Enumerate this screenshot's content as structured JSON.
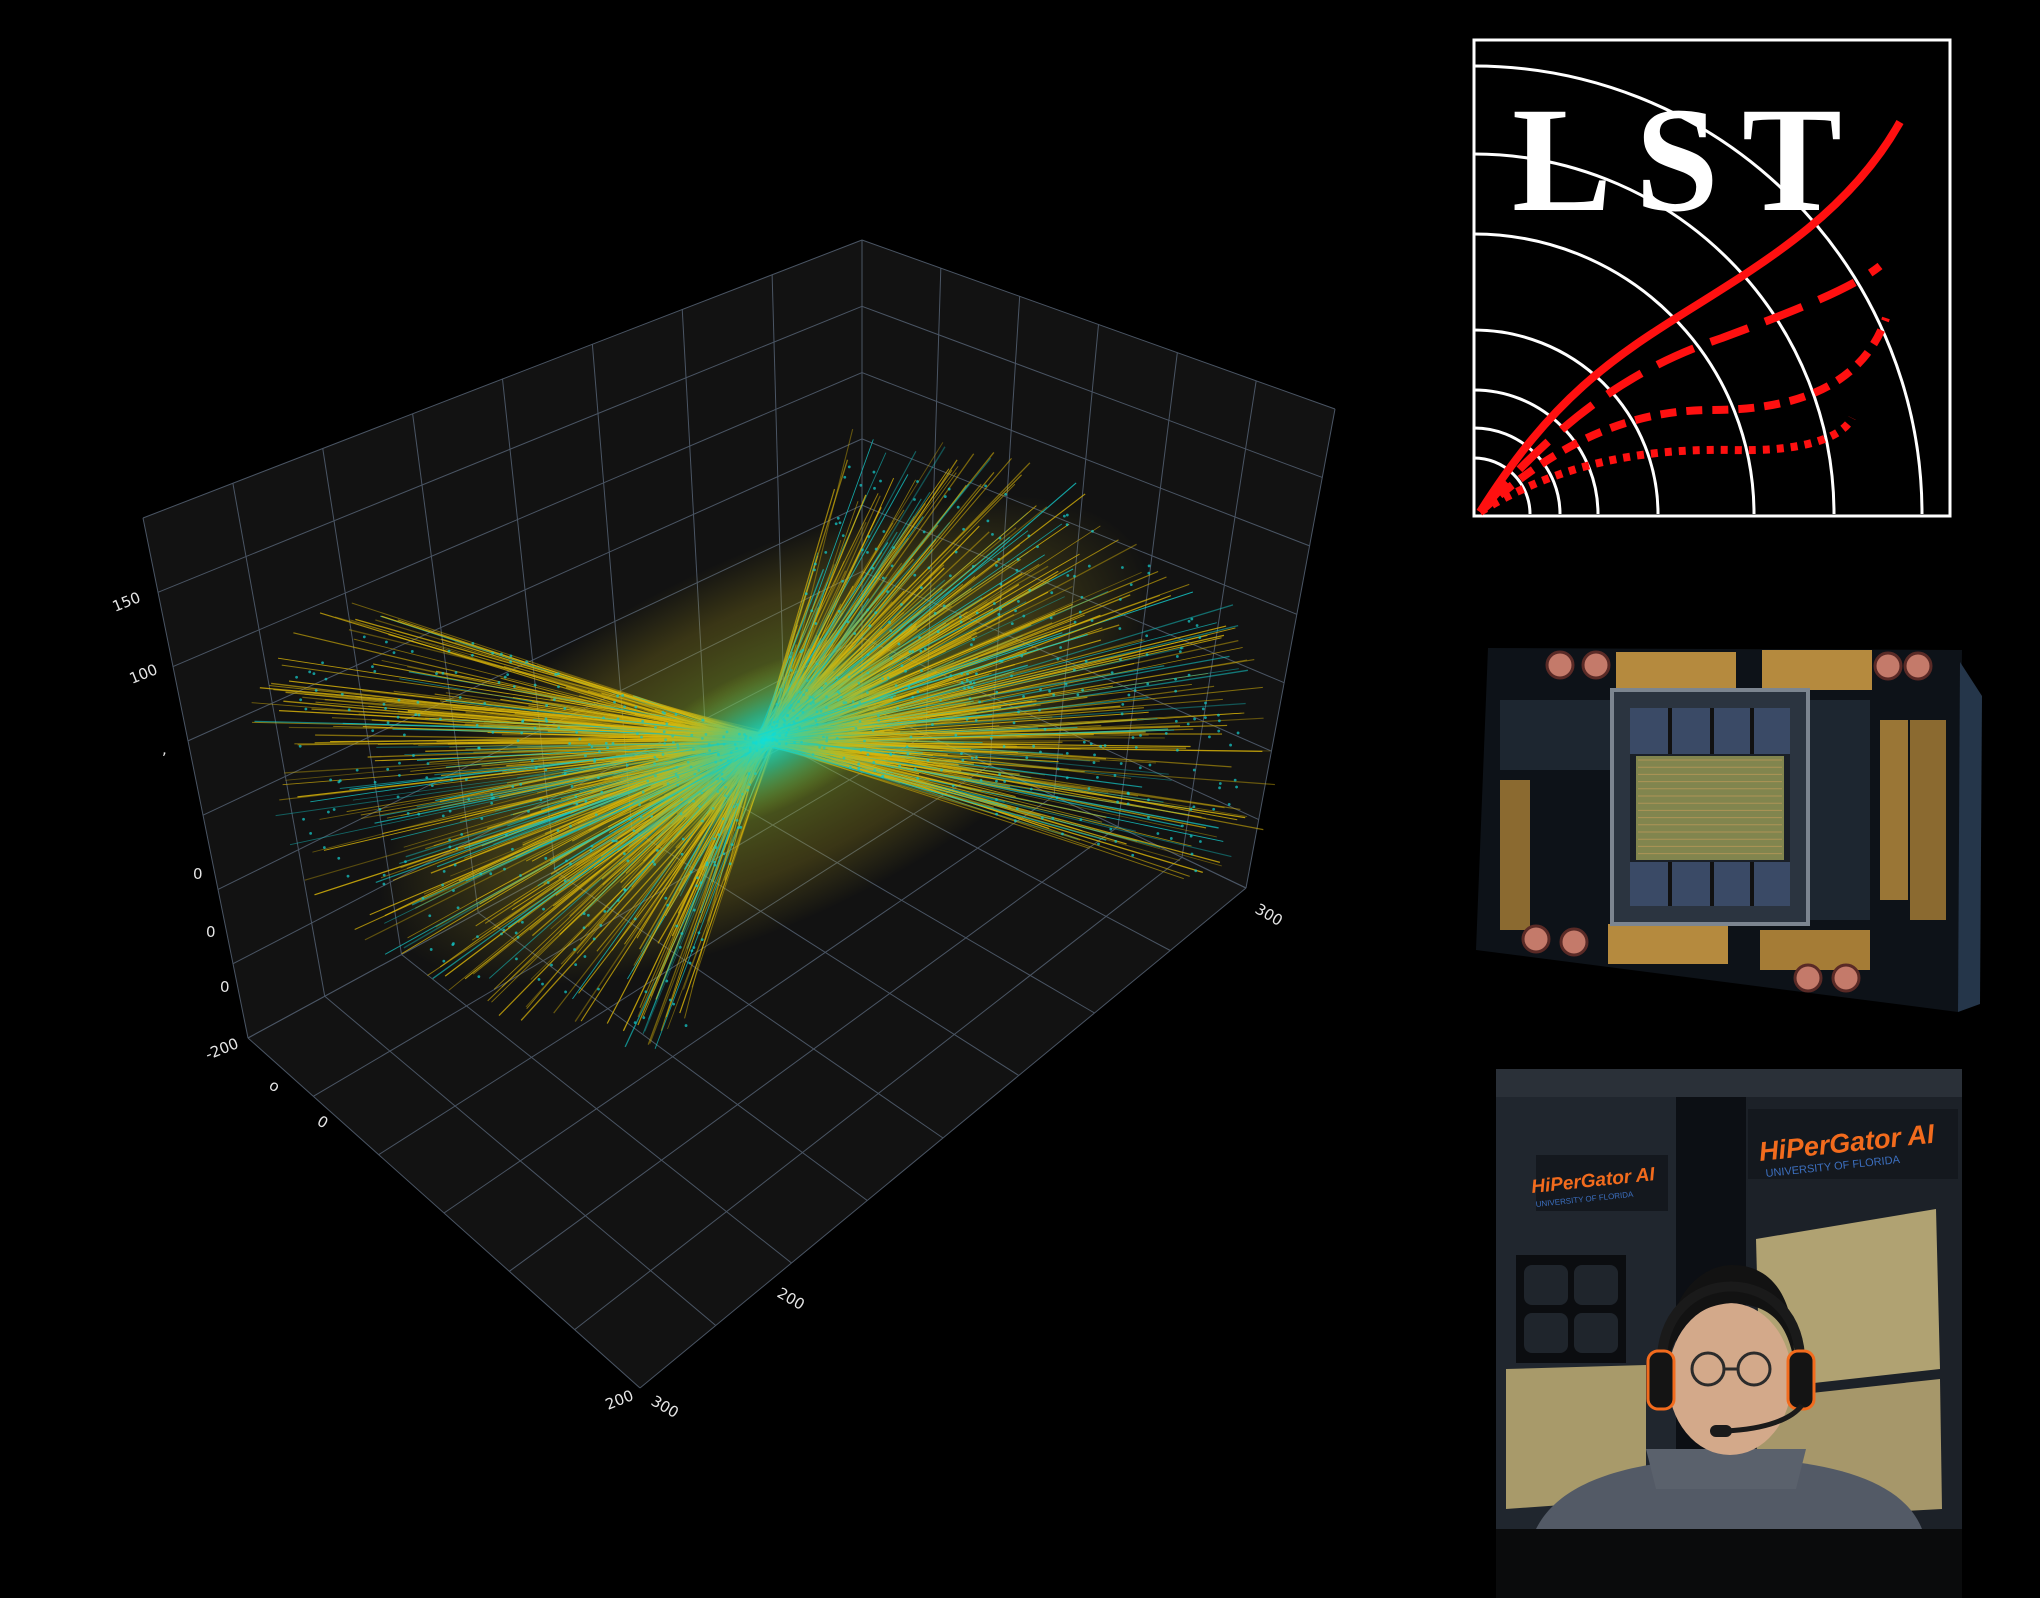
{
  "plot3d": {
    "type": "scatter3d",
    "tick_labels": {
      "vertical_axis": [
        "150",
        "100",
        "0",
        "-200"
      ],
      "right_axis": [
        "300"
      ],
      "front_axis": [
        "0",
        "200",
        "200",
        "300"
      ]
    },
    "series": [
      {
        "marker": "line",
        "color": "#d9b40a"
      },
      {
        "marker": "point",
        "color": "#14c6c6"
      }
    ],
    "background": "#111111",
    "grid": true
  },
  "logo": {
    "text": "LST",
    "border_color": "#ffffff",
    "track_color": "#ff1010"
  },
  "gpu_image": {
    "icon": "gpu-card-icon"
  },
  "photo": {
    "sign_left": {
      "title": "HiPerGator AI",
      "subtitle": "UNIVERSITY OF FLORIDA"
    },
    "sign_right": {
      "title": "HiPerGator AI",
      "subtitle": "UNIVERSITY OF FLORIDA"
    },
    "accent": "#f26b1d"
  }
}
